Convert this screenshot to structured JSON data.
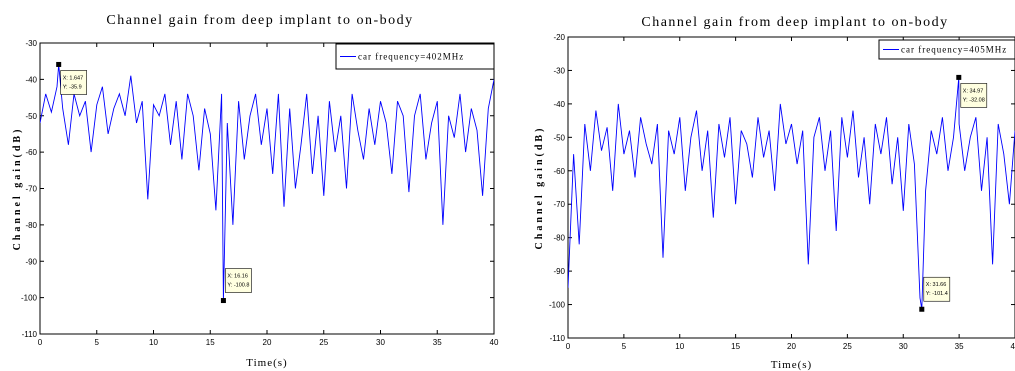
{
  "chart_data": [
    {
      "type": "line",
      "title": "Channel gain from deep implant to on-body",
      "xlabel": "Time(s)",
      "ylabel": "Channel gain(dB)",
      "xlim": [
        0,
        40
      ],
      "ylim": [
        -110,
        -30
      ],
      "xticks": [
        "0",
        "5",
        "10",
        "15",
        "20",
        "25",
        "30",
        "35",
        "40"
      ],
      "yticks": [
        "-30",
        "-40",
        "-50",
        "-60",
        "-70",
        "-80",
        "-90",
        "-100",
        "-110"
      ],
      "grid": false,
      "legend_position": "top-right",
      "series": [
        {
          "name": "car frequency=402MHz",
          "color": "#0000ff",
          "x": [
            0,
            0.5,
            1,
            1.5,
            1.647,
            2,
            2.5,
            3,
            3.5,
            4,
            4.5,
            5,
            5.5,
            6,
            6.5,
            7,
            7.5,
            8,
            8.5,
            9,
            9.5,
            10,
            10.5,
            11,
            11.5,
            12,
            12.5,
            13,
            13.5,
            14,
            14.5,
            15,
            15.5,
            16,
            16.16,
            16.5,
            17,
            17.5,
            18,
            18.5,
            19,
            19.5,
            20,
            20.5,
            21,
            21.5,
            22,
            22.5,
            23,
            23.5,
            24,
            24.5,
            25,
            25.5,
            26,
            26.5,
            27,
            27.5,
            28,
            28.5,
            29,
            29.5,
            30,
            30.5,
            31,
            31.5,
            32,
            32.5,
            33,
            33.5,
            34,
            34.5,
            35,
            35.5,
            36,
            36.5,
            37,
            37.5,
            38,
            38.5,
            39,
            39.5,
            40
          ],
          "y": [
            -52,
            -44,
            -49,
            -42,
            -35.9,
            -48,
            -58,
            -44,
            -50,
            -46,
            -60,
            -47,
            -42,
            -55,
            -48,
            -44,
            -50,
            -39,
            -52,
            -46,
            -73,
            -47,
            -50,
            -44,
            -58,
            -46,
            -62,
            -44,
            -50,
            -65,
            -48,
            -55,
            -76,
            -44,
            -100.8,
            -52,
            -80,
            -46,
            -62,
            -50,
            -44,
            -58,
            -48,
            -66,
            -44,
            -75,
            -48,
            -70,
            -58,
            -44,
            -66,
            -50,
            -72,
            -46,
            -60,
            -50,
            -70,
            -44,
            -54,
            -62,
            -48,
            -58,
            -46,
            -52,
            -66,
            -46,
            -50,
            -71,
            -50,
            -44,
            -62,
            -52,
            -46,
            -80,
            -50,
            -56,
            -44,
            -60,
            -48,
            -54,
            -72,
            -48,
            -40
          ]
        }
      ],
      "annotations": [
        {
          "x_label": "X: 1.647",
          "y_label": "Y: -35.9",
          "x": 1.647,
          "y": -35.9
        },
        {
          "x_label": "X: 16.16",
          "y_label": "Y: -100.8",
          "x": 16.16,
          "y": -100.8
        }
      ]
    },
    {
      "type": "line",
      "title": "Channel gain from deep implant to on-body",
      "xlabel": "Time(s)",
      "ylabel": "Channel gain(dB)",
      "xlim": [
        0,
        40
      ],
      "ylim": [
        -110,
        -20
      ],
      "xticks": [
        "0",
        "5",
        "10",
        "15",
        "20",
        "25",
        "30",
        "35",
        "40"
      ],
      "yticks": [
        "-20",
        "-30",
        "-40",
        "-50",
        "-60",
        "-70",
        "-80",
        "-90",
        "-100",
        "-110"
      ],
      "grid": false,
      "legend_position": "top-right",
      "series": [
        {
          "name": "car frequency=405MHz",
          "color": "#0000ff",
          "x": [
            0,
            0.5,
            1,
            1.5,
            2,
            2.5,
            3,
            3.5,
            4,
            4.5,
            5,
            5.5,
            6,
            6.5,
            7,
            7.5,
            8,
            8.5,
            9,
            9.5,
            10,
            10.5,
            11,
            11.5,
            12,
            12.5,
            13,
            13.5,
            14,
            14.5,
            15,
            15.5,
            16,
            16.5,
            17,
            17.5,
            18,
            18.5,
            19,
            19.5,
            20,
            20.5,
            21,
            21.5,
            22,
            22.5,
            23,
            23.5,
            24,
            24.5,
            25,
            25.5,
            26,
            26.5,
            27,
            27.5,
            28,
            28.5,
            29,
            29.5,
            30,
            30.5,
            31,
            31.5,
            31.66,
            32,
            32.5,
            33,
            33.5,
            34,
            34.5,
            34.97,
            35,
            35.5,
            36,
            36.5,
            37,
            37.5,
            38,
            38.5,
            39,
            39.5,
            40
          ],
          "y": [
            -95,
            -55,
            -82,
            -46,
            -60,
            -42,
            -54,
            -47,
            -66,
            -40,
            -55,
            -48,
            -62,
            -44,
            -52,
            -58,
            -46,
            -86,
            -48,
            -55,
            -44,
            -66,
            -50,
            -42,
            -60,
            -48,
            -74,
            -46,
            -56,
            -44,
            -70,
            -48,
            -52,
            -62,
            -44,
            -56,
            -48,
            -66,
            -40,
            -52,
            -46,
            -58,
            -48,
            -88,
            -50,
            -44,
            -60,
            -48,
            -78,
            -44,
            -56,
            -42,
            -62,
            -50,
            -70,
            -46,
            -55,
            -44,
            -64,
            -50,
            -72,
            -46,
            -58,
            -98,
            -101.4,
            -66,
            -48,
            -55,
            -44,
            -60,
            -50,
            -32.08,
            -46,
            -60,
            -50,
            -44,
            -66,
            -50,
            -88,
            -46,
            -55,
            -70,
            -48
          ]
        }
      ],
      "annotations": [
        {
          "x_label": "X: 34.97",
          "y_label": "Y: -32.08",
          "x": 34.97,
          "y": -32.08
        },
        {
          "x_label": "X: 31.66",
          "y_label": "Y: -101.4",
          "x": 31.66,
          "y": -101.4
        }
      ]
    }
  ]
}
